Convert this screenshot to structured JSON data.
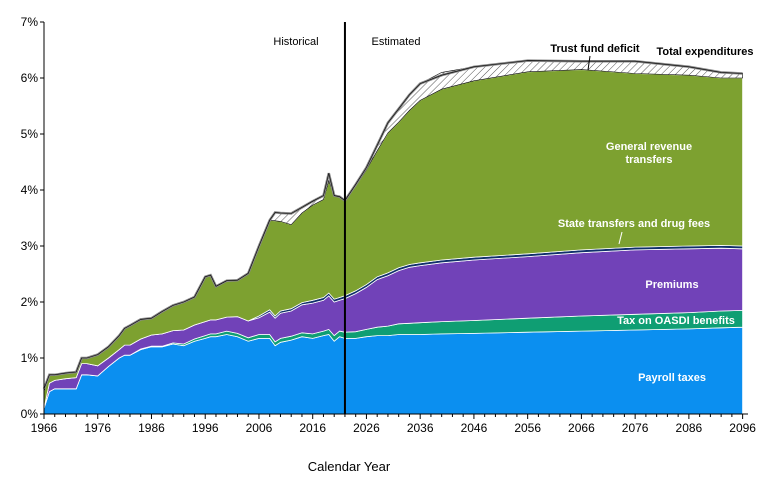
{
  "chart_data": {
    "type": "area",
    "xlabel": "Calendar Year",
    "ylabel": "",
    "xlim": [
      1966,
      2097
    ],
    "ylim": [
      0,
      7
    ],
    "x_ticks": [
      1966,
      1976,
      1986,
      1996,
      2006,
      2016,
      2026,
      2036,
      2046,
      2056,
      2066,
      2076,
      2086,
      2096
    ],
    "y_ticks": [
      "0%",
      "1%",
      "2%",
      "3%",
      "4%",
      "5%",
      "6%",
      "7%"
    ],
    "divider_year": 2022,
    "period_labels": {
      "historical": "Historical",
      "estimated": "Estimated"
    },
    "x": [
      1966,
      1967,
      1968,
      1970,
      1972,
      1973,
      1974,
      1976,
      1978,
      1980,
      1981,
      1982,
      1984,
      1986,
      1988,
      1990,
      1992,
      1994,
      1996,
      1997,
      1998,
      2000,
      2002,
      2004,
      2006,
      2008,
      2009,
      2010,
      2012,
      2014,
      2016,
      2018,
      2019,
      2020,
      2021,
      2022,
      2024,
      2026,
      2028,
      2030,
      2032,
      2034,
      2036,
      2040,
      2046,
      2056,
      2066,
      2076,
      2086,
      2092,
      2096
    ],
    "series": [
      {
        "name": "Payroll taxes",
        "color": "#0b8ff0",
        "values": [
          0.1,
          0.4,
          0.45,
          0.45,
          0.45,
          0.7,
          0.7,
          0.68,
          0.85,
          1.0,
          1.05,
          1.05,
          1.15,
          1.2,
          1.2,
          1.25,
          1.22,
          1.3,
          1.35,
          1.38,
          1.38,
          1.42,
          1.38,
          1.3,
          1.35,
          1.35,
          1.22,
          1.28,
          1.32,
          1.38,
          1.35,
          1.4,
          1.42,
          1.3,
          1.38,
          1.35,
          1.35,
          1.38,
          1.4,
          1.4,
          1.42,
          1.42,
          1.42,
          1.43,
          1.44,
          1.46,
          1.48,
          1.5,
          1.52,
          1.54,
          1.55
        ]
      },
      {
        "name": "Tax on OASDI benefits",
        "color": "#0f9e73",
        "values": [
          0,
          0,
          0,
          0,
          0,
          0,
          0,
          0,
          0,
          0,
          0,
          0,
          0.01,
          0.01,
          0.01,
          0.02,
          0.03,
          0.04,
          0.05,
          0.05,
          0.05,
          0.06,
          0.06,
          0.06,
          0.07,
          0.07,
          0.07,
          0.07,
          0.07,
          0.07,
          0.08,
          0.08,
          0.09,
          0.1,
          0.1,
          0.11,
          0.12,
          0.13,
          0.15,
          0.17,
          0.19,
          0.2,
          0.21,
          0.22,
          0.23,
          0.25,
          0.27,
          0.28,
          0.29,
          0.3,
          0.3
        ]
      },
      {
        "name": "Premiums",
        "color": "#7142b8",
        "values": [
          0.0,
          0.15,
          0.15,
          0.18,
          0.2,
          0.2,
          0.2,
          0.18,
          0.15,
          0.15,
          0.18,
          0.18,
          0.18,
          0.2,
          0.22,
          0.22,
          0.25,
          0.25,
          0.25,
          0.25,
          0.25,
          0.25,
          0.3,
          0.3,
          0.3,
          0.4,
          0.42,
          0.45,
          0.45,
          0.5,
          0.55,
          0.55,
          0.6,
          0.6,
          0.55,
          0.6,
          0.68,
          0.75,
          0.85,
          0.9,
          0.95,
          1.0,
          1.02,
          1.05,
          1.08,
          1.1,
          1.13,
          1.15,
          1.14,
          1.12,
          1.1
        ]
      },
      {
        "name": "State transfers and drug fees",
        "color": "#10306b",
        "values": [
          0,
          0,
          0,
          0,
          0,
          0,
          0,
          0,
          0,
          0,
          0,
          0,
          0,
          0,
          0,
          0,
          0,
          0,
          0,
          0,
          0,
          0,
          0,
          0,
          0.03,
          0.04,
          0.04,
          0.04,
          0.04,
          0.04,
          0.05,
          0.05,
          0.05,
          0.05,
          0.05,
          0.05,
          0.05,
          0.05,
          0.05,
          0.05,
          0.05,
          0.05,
          0.05,
          0.05,
          0.05,
          0.05,
          0.05,
          0.05,
          0.05,
          0.05,
          0.05
        ]
      },
      {
        "name": "General revenue transfers",
        "color": "#7da130",
        "values": [
          0.3,
          0.15,
          0.1,
          0.1,
          0.1,
          0.1,
          0.1,
          0.2,
          0.2,
          0.25,
          0.3,
          0.35,
          0.35,
          0.3,
          0.4,
          0.45,
          0.5,
          0.5,
          0.8,
          0.8,
          0.6,
          0.65,
          0.65,
          0.85,
          1.25,
          1.6,
          1.7,
          1.6,
          1.5,
          1.6,
          1.7,
          1.75,
          2.0,
          1.85,
          1.8,
          1.7,
          1.87,
          2.05,
          2.25,
          2.5,
          2.6,
          2.75,
          2.9,
          3.05,
          3.15,
          3.25,
          3.22,
          3.1,
          3.05,
          2.99,
          3.0
        ]
      },
      {
        "name": "Trust fund deficit",
        "color": "#ffffff",
        "values": [
          0.05,
          0,
          0,
          0,
          0,
          0,
          0,
          0,
          0,
          0,
          0,
          0,
          0,
          0,
          0,
          0,
          0,
          0,
          0,
          0,
          0,
          0,
          0,
          0,
          0,
          0,
          0.15,
          0.15,
          0.2,
          0.1,
          0.07,
          0.07,
          0.14,
          0,
          0,
          0,
          0.03,
          0.04,
          0.1,
          0.18,
          0.24,
          0.28,
          0.3,
          0.3,
          0.25,
          0.2,
          0.15,
          0.22,
          0.15,
          0.1,
          0.08
        ]
      },
      {
        "name": "Total expenditures",
        "color": "#888888",
        "values": [
          0.45,
          0.7,
          0.7,
          0.73,
          0.75,
          1.0,
          1.0,
          1.06,
          1.2,
          1.4,
          1.53,
          1.58,
          1.69,
          1.71,
          1.83,
          1.94,
          2.0,
          2.09,
          2.45,
          2.48,
          2.28,
          2.38,
          2.39,
          2.51,
          3.0,
          3.46,
          3.6,
          3.59,
          3.58,
          3.69,
          3.8,
          3.9,
          4.3,
          3.9,
          3.88,
          3.81,
          4.1,
          4.4,
          4.8,
          5.2,
          5.45,
          5.7,
          5.9,
          6.05,
          6.2,
          6.31,
          6.3,
          6.3,
          6.2,
          6.1,
          6.08
        ]
      }
    ],
    "labels": {
      "payroll": "Payroll taxes",
      "tax_oasdi": "Tax on OASDI benefits",
      "premiums": "Premiums",
      "state": "State transfers and drug fees",
      "general_1": "General revenue",
      "general_2": "transfers",
      "deficit": "Trust fund deficit",
      "total": "Total expenditures"
    }
  }
}
